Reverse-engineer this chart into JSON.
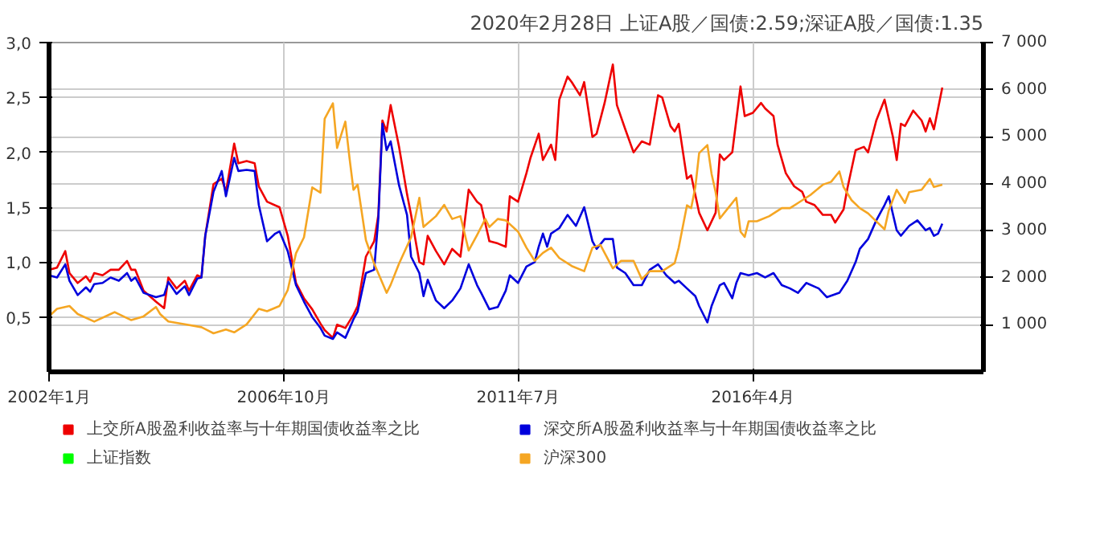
{
  "chart_data": {
    "type": "line",
    "title": "2020年2月28日 上证A股／国债:2.59;深证A股／国债:1.35",
    "xlim": [
      "2002-01",
      "2020-12"
    ],
    "xticks": [
      {
        "value": "2002-01",
        "label": "2002年1月"
      },
      {
        "value": "2006-10",
        "label": "2006年10月"
      },
      {
        "value": "2011-07",
        "label": "2011年7月"
      },
      {
        "value": "2016-04",
        "label": "2016年4月"
      }
    ],
    "ylim": [
      0,
      3
    ],
    "yticks": [
      {
        "value": 0.5,
        "label": "0,5"
      },
      {
        "value": 1,
        "label": "1,0"
      },
      {
        "value": 1.5,
        "label": "1,5"
      },
      {
        "value": 2,
        "label": "2,0"
      },
      {
        "value": 2.5,
        "label": "2,5"
      },
      {
        "value": 3,
        "label": "3,0"
      }
    ],
    "y2lim": [
      0,
      7000
    ],
    "y2ticks": [
      {
        "value": 1000,
        "label": "1 000"
      },
      {
        "value": 2000,
        "label": "2 000"
      },
      {
        "value": 3000,
        "label": "3 000"
      },
      {
        "value": 4000,
        "label": "4 000"
      },
      {
        "value": 5000,
        "label": "5 000"
      },
      {
        "value": 6000,
        "label": "6 000"
      },
      {
        "value": 7000,
        "label": "7 000"
      }
    ],
    "grid": true,
    "legend": "bottom",
    "marker": "none",
    "line_style": "solid",
    "series": [
      {
        "name": "上交所A股盈利收益率与十年期国债收益率之比",
        "color": "#ee0000",
        "x": [
          "2002-01",
          "2002-03",
          "2002-05",
          "2002-06",
          "2002-08",
          "2002-10",
          "2002-11",
          "2002-12",
          "2003-02",
          "2003-04",
          "2003-06",
          "2003-08",
          "2003-09",
          "2003-10",
          "2003-12",
          "2004-03",
          "2004-05",
          "2004-06",
          "2004-08",
          "2004-10",
          "2004-11",
          "2005-01",
          "2005-02",
          "2005-03",
          "2005-05",
          "2005-07",
          "2005-08",
          "2005-10",
          "2005-11",
          "2006-01",
          "2006-03",
          "2006-04",
          "2006-06",
          "2006-09",
          "2006-11",
          "2007-01",
          "2007-03",
          "2007-05",
          "2007-07",
          "2007-08",
          "2007-10",
          "2007-11",
          "2008-01",
          "2008-03",
          "2008-04",
          "2008-06",
          "2008-08",
          "2008-09",
          "2008-10",
          "2008-11",
          "2008-12",
          "2009-02",
          "2009-04",
          "2009-05",
          "2009-07",
          "2009-08",
          "2009-09",
          "2009-11",
          "2010-01",
          "2010-03",
          "2010-05",
          "2010-07",
          "2010-09",
          "2010-10",
          "2010-12",
          "2011-02",
          "2011-04",
          "2011-05",
          "2011-07",
          "2011-09",
          "2011-10",
          "2011-12",
          "2012-01",
          "2012-03",
          "2012-04",
          "2012-05",
          "2012-07",
          "2012-08",
          "2012-10",
          "2012-11",
          "2013-01",
          "2013-02",
          "2013-04",
          "2013-06",
          "2013-07",
          "2013-09",
          "2013-11",
          "2014-01",
          "2014-03",
          "2014-05",
          "2014-06",
          "2014-08",
          "2014-09",
          "2014-10",
          "2014-12",
          "2015-01",
          "2015-03",
          "2015-05",
          "2015-07",
          "2015-08",
          "2015-09",
          "2015-11",
          "2016-01",
          "2016-02",
          "2016-04",
          "2016-06",
          "2016-07",
          "2016-09",
          "2016-10",
          "2016-12",
          "2017-02",
          "2017-04",
          "2017-05",
          "2017-07",
          "2017-09",
          "2017-11",
          "2017-12",
          "2018-02",
          "2018-03",
          "2018-05",
          "2018-07",
          "2018-08",
          "2018-10",
          "2018-12",
          "2019-02",
          "2019-03",
          "2019-04",
          "2019-05",
          "2019-07",
          "2019-09",
          "2019-10",
          "2019-11",
          "2019-12",
          "2020-01",
          "2020-02"
        ],
        "values": [
          0.93,
          0.95,
          1.1,
          0.9,
          0.81,
          0.87,
          0.82,
          0.9,
          0.88,
          0.93,
          0.93,
          1.01,
          0.93,
          0.93,
          0.74,
          0.64,
          0.58,
          0.86,
          0.76,
          0.83,
          0.74,
          0.88,
          0.86,
          1.24,
          1.71,
          1.76,
          1.64,
          2.08,
          1.9,
          1.92,
          1.9,
          1.69,
          1.55,
          1.5,
          1.24,
          0.81,
          0.67,
          0.57,
          0.44,
          0.38,
          0.31,
          0.43,
          0.4,
          0.52,
          0.6,
          1.05,
          1.19,
          1.43,
          2.29,
          2.19,
          2.43,
          2.05,
          1.62,
          1.43,
          1.0,
          0.98,
          1.24,
          1.1,
          0.98,
          1.12,
          1.05,
          1.66,
          1.55,
          1.52,
          1.19,
          1.17,
          1.14,
          1.6,
          1.55,
          1.81,
          1.95,
          2.17,
          1.93,
          2.07,
          1.93,
          2.48,
          2.69,
          2.64,
          2.52,
          2.64,
          2.14,
          2.17,
          2.45,
          2.8,
          2.43,
          2.21,
          2.0,
          2.1,
          2.07,
          2.52,
          2.5,
          2.24,
          2.19,
          2.26,
          1.76,
          1.79,
          1.45,
          1.29,
          1.45,
          1.98,
          1.93,
          2.0,
          2.6,
          2.33,
          2.36,
          2.45,
          2.4,
          2.33,
          2.07,
          1.81,
          1.69,
          1.64,
          1.55,
          1.52,
          1.43,
          1.43,
          1.36,
          1.48,
          1.67,
          2.02,
          2.05,
          2.0,
          2.29,
          2.48,
          2.14,
          1.93,
          2.26,
          2.24,
          2.38,
          2.29,
          2.19,
          2.31,
          2.21,
          2.4,
          2.59
        ]
      },
      {
        "name": "深交所A股盈利收益率与十年期国债收益率之比",
        "color": "#0000dd",
        "x": [
          "2002-01",
          "2002-03",
          "2002-05",
          "2002-06",
          "2002-08",
          "2002-10",
          "2002-11",
          "2002-12",
          "2003-02",
          "2003-04",
          "2003-06",
          "2003-08",
          "2003-09",
          "2003-10",
          "2003-12",
          "2004-03",
          "2004-05",
          "2004-06",
          "2004-08",
          "2004-10",
          "2004-11",
          "2005-01",
          "2005-02",
          "2005-03",
          "2005-05",
          "2005-07",
          "2005-08",
          "2005-10",
          "2005-11",
          "2006-01",
          "2006-03",
          "2006-04",
          "2006-06",
          "2006-08",
          "2006-09",
          "2006-11",
          "2007-01",
          "2007-03",
          "2007-05",
          "2007-07",
          "2007-08",
          "2007-10",
          "2007-11",
          "2008-01",
          "2008-03",
          "2008-04",
          "2008-06",
          "2008-08",
          "2008-09",
          "2008-10",
          "2008-11",
          "2008-12",
          "2009-02",
          "2009-04",
          "2009-05",
          "2009-07",
          "2009-08",
          "2009-09",
          "2009-11",
          "2010-01",
          "2010-03",
          "2010-05",
          "2010-07",
          "2010-09",
          "2010-10",
          "2010-12",
          "2011-02",
          "2011-04",
          "2011-05",
          "2011-07",
          "2011-09",
          "2011-11",
          "2011-12",
          "2012-01",
          "2012-02",
          "2012-03",
          "2012-05",
          "2012-07",
          "2012-09",
          "2012-11",
          "2013-01",
          "2013-02",
          "2013-04",
          "2013-06",
          "2013-07",
          "2013-09",
          "2013-11",
          "2014-01",
          "2014-03",
          "2014-05",
          "2014-07",
          "2014-09",
          "2014-10",
          "2014-12",
          "2015-02",
          "2015-03",
          "2015-05",
          "2015-06",
          "2015-08",
          "2015-09",
          "2015-11",
          "2015-12",
          "2016-01",
          "2016-03",
          "2016-05",
          "2016-07",
          "2016-09",
          "2016-11",
          "2017-01",
          "2017-03",
          "2017-05",
          "2017-08",
          "2017-10",
          "2018-01",
          "2018-03",
          "2018-05",
          "2018-06",
          "2018-08",
          "2018-10",
          "2018-12",
          "2019-01",
          "2019-03",
          "2019-04",
          "2019-06",
          "2019-08",
          "2019-10",
          "2019-11",
          "2019-12",
          "2020-01",
          "2020-02"
        ],
        "values": [
          0.88,
          0.86,
          0.98,
          0.83,
          0.7,
          0.77,
          0.73,
          0.8,
          0.81,
          0.86,
          0.83,
          0.9,
          0.83,
          0.86,
          0.72,
          0.68,
          0.7,
          0.82,
          0.71,
          0.78,
          0.7,
          0.85,
          0.86,
          1.24,
          1.64,
          1.83,
          1.6,
          1.95,
          1.83,
          1.84,
          1.83,
          1.52,
          1.19,
          1.26,
          1.28,
          1.1,
          0.79,
          0.64,
          0.5,
          0.4,
          0.33,
          0.3,
          0.36,
          0.31,
          0.48,
          0.55,
          0.9,
          0.93,
          1.4,
          2.26,
          2.02,
          2.1,
          1.7,
          1.43,
          1.05,
          0.9,
          0.69,
          0.84,
          0.65,
          0.58,
          0.65,
          0.76,
          0.98,
          0.79,
          0.72,
          0.57,
          0.59,
          0.74,
          0.88,
          0.81,
          0.96,
          1.0,
          1.14,
          1.26,
          1.14,
          1.26,
          1.31,
          1.43,
          1.33,
          1.5,
          1.19,
          1.12,
          1.21,
          1.21,
          0.95,
          0.9,
          0.79,
          0.79,
          0.93,
          0.98,
          0.88,
          0.81,
          0.83,
          0.76,
          0.69,
          0.6,
          0.45,
          0.6,
          0.79,
          0.81,
          0.67,
          0.81,
          0.9,
          0.88,
          0.9,
          0.86,
          0.9,
          0.79,
          0.76,
          0.72,
          0.81,
          0.76,
          0.68,
          0.72,
          0.83,
          1.0,
          1.12,
          1.21,
          1.38,
          1.52,
          1.6,
          1.29,
          1.24,
          1.33,
          1.38,
          1.29,
          1.31,
          1.24,
          1.26,
          1.35
        ]
      },
      {
        "name": "上证指数",
        "color": "#00ff00",
        "axis": "y2"
      },
      {
        "name": "沪深300",
        "color": "#f5a623",
        "axis": "y2",
        "x": [
          "2002-01",
          "2002-03",
          "2002-06",
          "2002-08",
          "2002-12",
          "2003-04",
          "2003-05",
          "2003-09",
          "2003-12",
          "2004-03",
          "2004-04",
          "2004-06",
          "2004-10",
          "2005-02",
          "2005-05",
          "2005-08",
          "2005-10",
          "2006-01",
          "2006-04",
          "2006-06",
          "2006-09",
          "2006-11",
          "2007-01",
          "2007-03",
          "2007-05",
          "2007-07",
          "2007-08",
          "2007-10",
          "2007-11",
          "2008-01",
          "2008-02",
          "2008-03",
          "2008-04",
          "2008-06",
          "2008-08",
          "2008-11",
          "2008-12",
          "2009-02",
          "2009-05",
          "2009-07",
          "2009-08",
          "2009-11",
          "2010-01",
          "2010-03",
          "2010-05",
          "2010-07",
          "2010-09",
          "2010-11",
          "2010-12",
          "2011-02",
          "2011-04",
          "2011-07",
          "2011-09",
          "2011-11",
          "2012-01",
          "2012-03",
          "2012-05",
          "2012-08",
          "2012-11",
          "2013-01",
          "2013-03",
          "2013-04",
          "2013-06",
          "2013-08",
          "2013-11",
          "2014-01",
          "2014-03",
          "2014-06",
          "2014-09",
          "2014-10",
          "2014-12",
          "2015-01",
          "2015-02",
          "2015-03",
          "2015-05",
          "2015-06",
          "2015-07",
          "2015-08",
          "2015-10",
          "2015-12",
          "2016-01",
          "2016-02",
          "2016-03",
          "2016-05",
          "2016-08",
          "2016-11",
          "2017-01",
          "2017-03",
          "2017-06",
          "2017-09",
          "2017-11",
          "2018-01",
          "2018-02",
          "2018-04",
          "2018-06",
          "2018-08",
          "2018-10",
          "2018-12",
          "2019-01",
          "2019-03",
          "2019-05",
          "2019-06",
          "2019-09",
          "2019-11",
          "2019-12",
          "2020-02"
        ],
        "values": [
          1180,
          1340,
          1400,
          1230,
          1070,
          1230,
          1270,
          1100,
          1180,
          1380,
          1230,
          1070,
          1010,
          950,
          820,
          900,
          840,
          1010,
          1340,
          1290,
          1400,
          1740,
          2520,
          2860,
          3920,
          3810,
          5380,
          5710,
          4760,
          5320,
          4540,
          3870,
          3980,
          2800,
          2300,
          1680,
          1850,
          2300,
          2860,
          3700,
          3080,
          3310,
          3550,
          3250,
          3310,
          2580,
          2910,
          3250,
          3080,
          3250,
          3220,
          2980,
          2640,
          2360,
          2530,
          2640,
          2420,
          2250,
          2140,
          2640,
          2700,
          2530,
          2200,
          2360,
          2360,
          1970,
          2140,
          2140,
          2310,
          2640,
          3540,
          3480,
          3930,
          4650,
          4820,
          4210,
          3820,
          3260,
          3480,
          3700,
          2980,
          2870,
          3200,
          3200,
          3310,
          3480,
          3480,
          3590,
          3760,
          3980,
          4040,
          4260,
          3930,
          3650,
          3480,
          3370,
          3200,
          3030,
          3430,
          3870,
          3590,
          3820,
          3870,
          4100,
          3930,
          3980
        ]
      }
    ]
  }
}
